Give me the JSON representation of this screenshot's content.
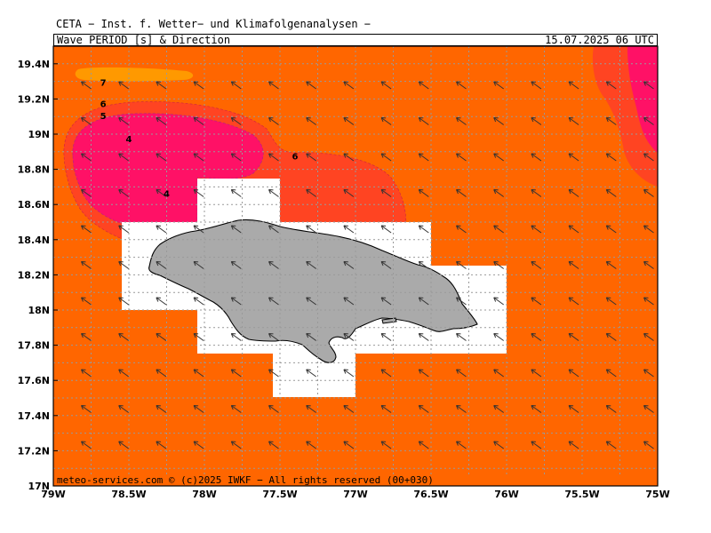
{
  "header": {
    "line1": "CETA − Inst. f. Wetter− und Klimafolgenanalysen −",
    "product": "Wave_PERIOD_[s]_&_Direction",
    "datetime": "15.07.2025 06 UTC"
  },
  "credit": "meteo-services.com © (c)2025 IWKF − All rights reserved (00+030)",
  "map": {
    "region_name": "Jamaica",
    "lon_range": [
      -79,
      -75
    ],
    "lat_range": [
      17,
      19.5
    ],
    "x_ticks": [
      {
        "lon": -79,
        "label": "79W"
      },
      {
        "lon": -78.5,
        "label": "78.5W"
      },
      {
        "lon": -78,
        "label": "78W"
      },
      {
        "lon": -77.5,
        "label": "77.5W"
      },
      {
        "lon": -77,
        "label": "77W"
      },
      {
        "lon": -76.5,
        "label": "76.5W"
      },
      {
        "lon": -76,
        "label": "76W"
      },
      {
        "lon": -75.5,
        "label": "75.5W"
      },
      {
        "lon": -75,
        "label": "75W"
      }
    ],
    "y_ticks": [
      {
        "lat": 17,
        "label": "17N"
      },
      {
        "lat": 17.2,
        "label": "17.2N"
      },
      {
        "lat": 17.4,
        "label": "17.4N"
      },
      {
        "lat": 17.6,
        "label": "17.6N"
      },
      {
        "lat": 17.8,
        "label": "17.8N"
      },
      {
        "lat": 18,
        "label": "18N"
      },
      {
        "lat": 18.2,
        "label": "18.2N"
      },
      {
        "lat": 18.4,
        "label": "18.4N"
      },
      {
        "lat": 18.6,
        "label": "18.6N"
      },
      {
        "lat": 18.8,
        "label": "18.8N"
      },
      {
        "lat": 19,
        "label": "19N"
      },
      {
        "lat": 19.2,
        "label": "19.2N"
      },
      {
        "lat": 19.4,
        "label": "19.4N"
      }
    ],
    "contour_labels": [
      {
        "text": "7",
        "lon": -78.67,
        "lat": 19.29
      },
      {
        "text": "6",
        "lon": -78.67,
        "lat": 19.17
      },
      {
        "text": "5",
        "lon": -78.67,
        "lat": 19.1
      },
      {
        "text": "4",
        "lon": -78.5,
        "lat": 18.97
      },
      {
        "text": "6",
        "lon": -77.4,
        "lat": 18.87
      },
      {
        "text": "4",
        "lon": -78.25,
        "lat": 18.66
      }
    ],
    "colors": {
      "background_period": "#ff6600",
      "period_6": "#ff4422",
      "period_4_5": "#ff1166",
      "period_7": "#ff9900",
      "land": "#aaaaaa",
      "no_data": "#ffffff",
      "grid": "#999999",
      "arrow": "#333333"
    },
    "wave_direction": "from east-southeast, arrows pointing north-west"
  }
}
